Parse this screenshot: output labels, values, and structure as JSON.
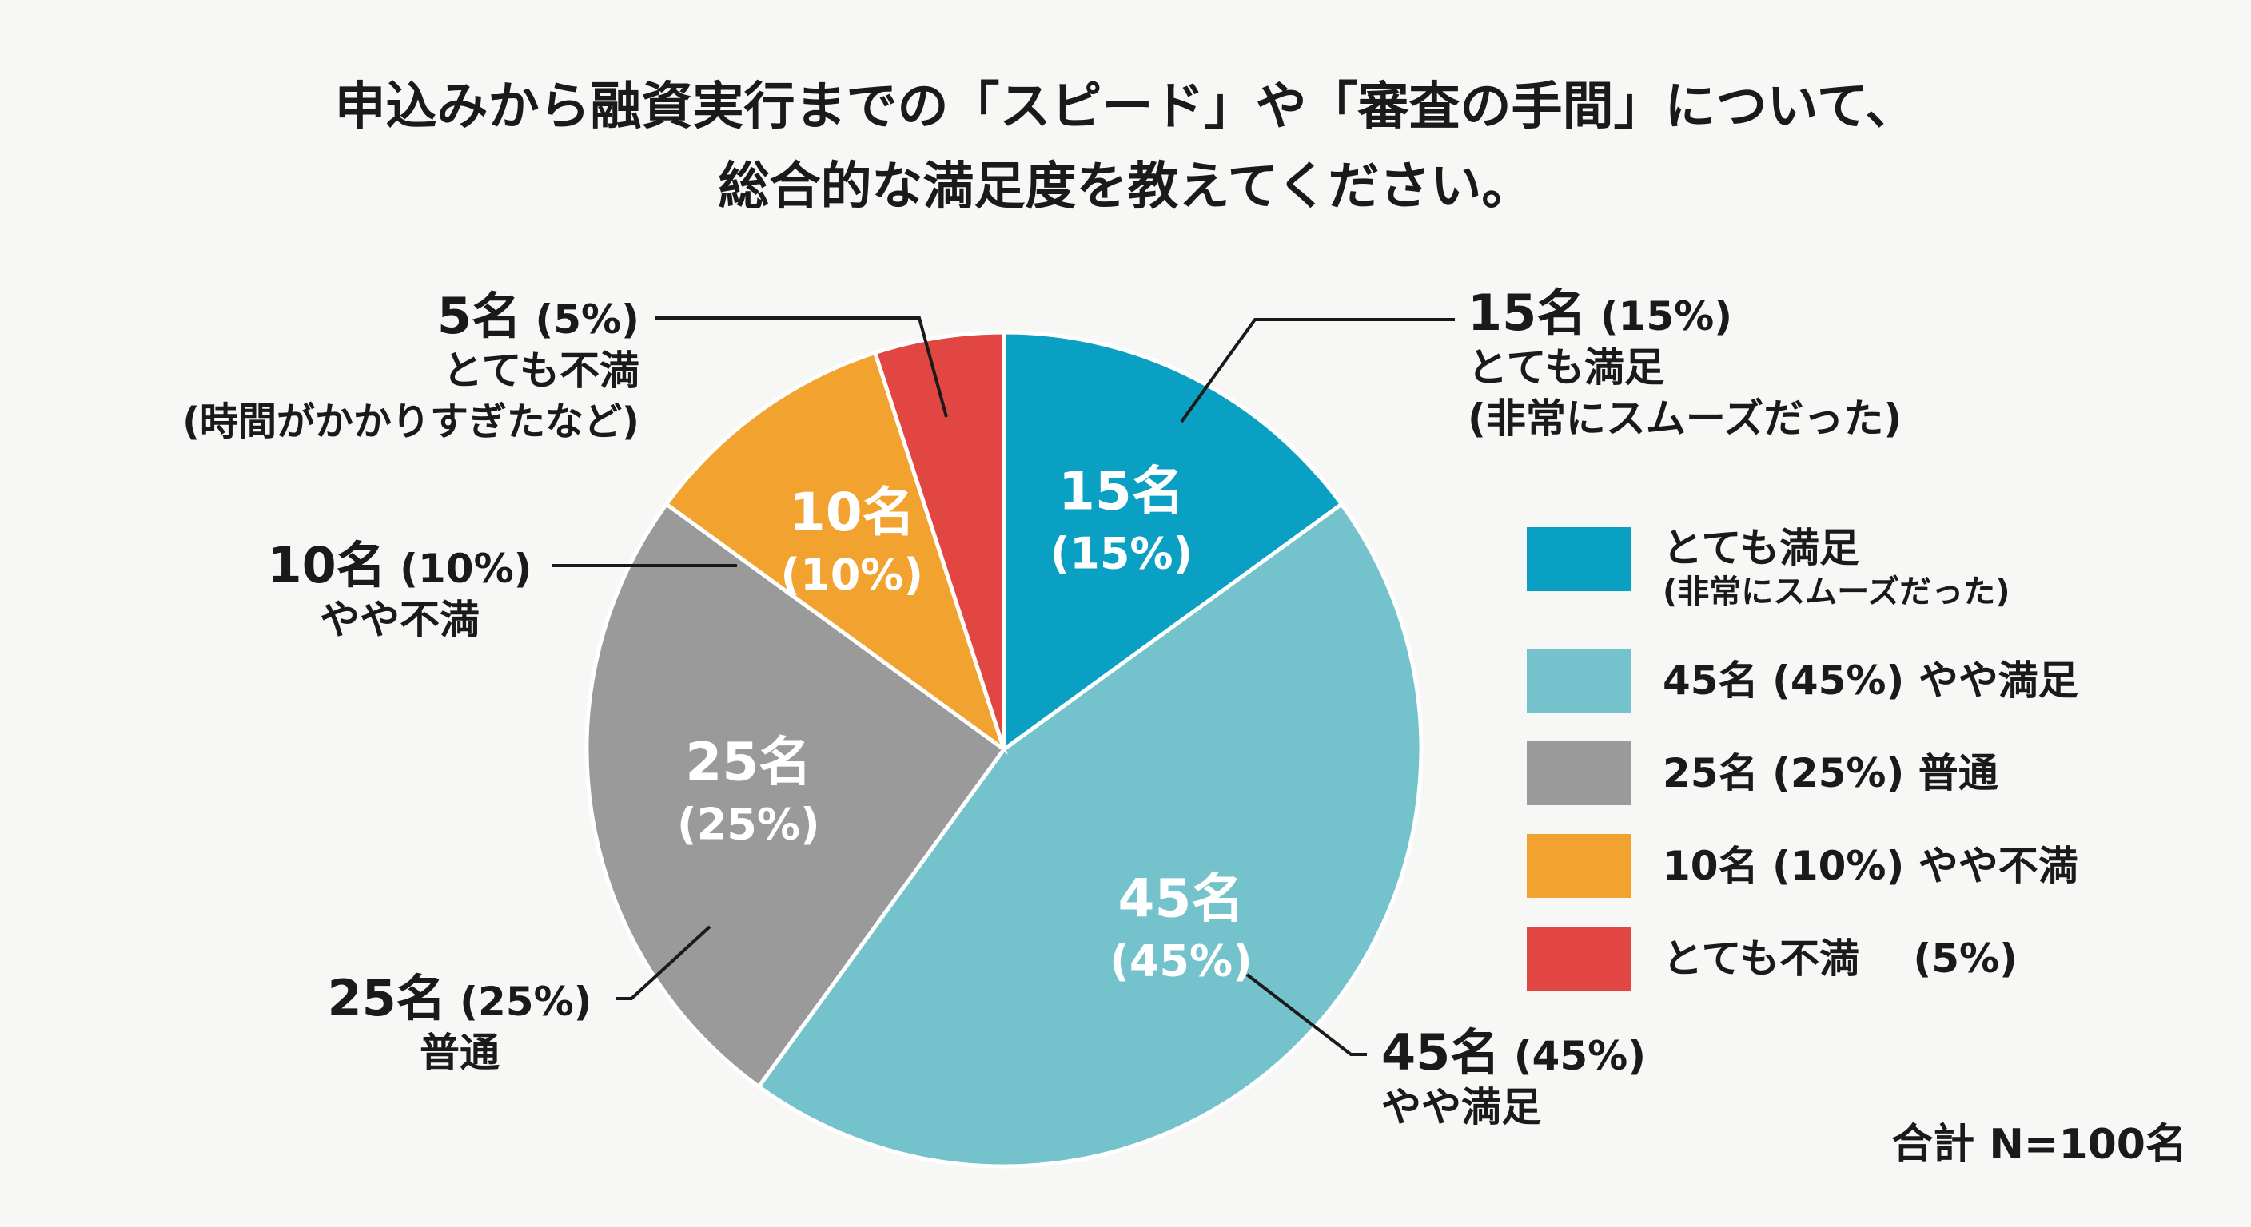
{
  "title": {
    "line1": "申込みから融資実行までの「スピード」や「審査の手間」について、",
    "line2": "総合的な満足度を教えてください。"
  },
  "chart_data": {
    "type": "pie",
    "title": "申込みから融資実行までの「スピード」や「審査の手間」について、総合的な満足度を教えてください。",
    "categories": [
      "とても満足",
      "やや満足",
      "普通",
      "やや不満",
      "とても不満"
    ],
    "values": [
      15,
      45,
      25,
      10,
      5
    ],
    "percent": [
      15,
      45,
      25,
      10,
      5
    ],
    "colors": [
      "#0aa0c4",
      "#74c2cc",
      "#9a9a9a",
      "#f2a22e",
      "#e24642"
    ],
    "slice_labels": [
      {
        "count": "15名",
        "pct": "(15%)"
      },
      {
        "count": "45名",
        "pct": "(45%)"
      },
      {
        "count": "25名",
        "pct": "(25%)"
      },
      {
        "count": "10名",
        "pct": "(10%)"
      },
      {
        "count": "",
        "pct": ""
      }
    ],
    "legend_position": "right"
  },
  "callouts": {
    "very_satisfied": {
      "count": "15名",
      "pct": "(15%)",
      "label": "とても満足",
      "note": "(非常にスムーズだった)"
    },
    "somewhat_satisfied": {
      "count": "45名",
      "pct": "(45%)",
      "label": "やや満足"
    },
    "neutral": {
      "count": "25名",
      "pct": "(25%)",
      "label": "普通"
    },
    "somewhat_dissatisfied": {
      "count": "10名",
      "pct": "(10%)",
      "label": "やや不満"
    },
    "very_dissatisfied": {
      "count": "5名",
      "pct": "(5%)",
      "label": "とても不満",
      "note": "(時間がかかりすぎたなど)"
    }
  },
  "legend": [
    {
      "text": "とても満足",
      "sub": "(非常にスムーズだった)",
      "color": "#0aa0c4"
    },
    {
      "text": "45名 (45%)  やや満足",
      "color": "#74c2cc"
    },
    {
      "text": "25名 (25%)  普通",
      "color": "#9a9a9a"
    },
    {
      "text": "10名 (10%)  やや不満",
      "color": "#f2a22e"
    },
    {
      "text": "とても不満　 (5%)",
      "color": "#e24642"
    }
  ],
  "total": "合計 N=100名"
}
